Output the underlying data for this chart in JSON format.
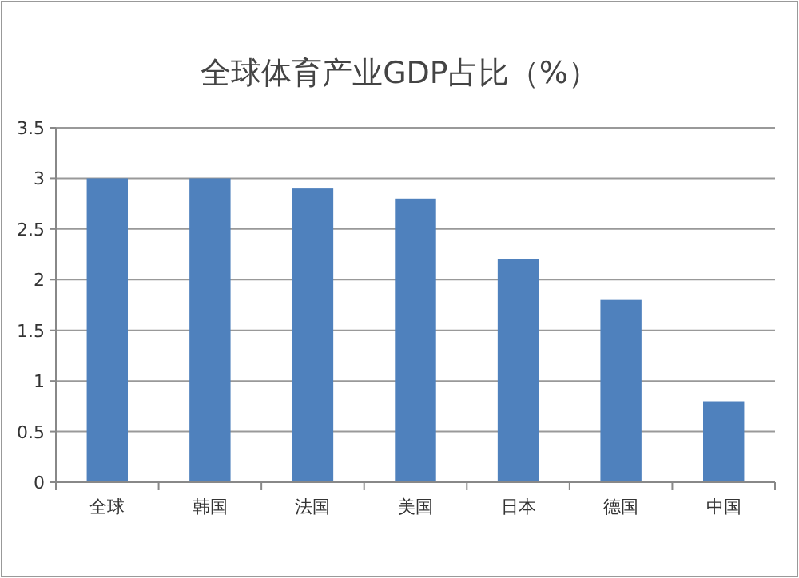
{
  "chart_data": {
    "type": "bar",
    "title": "全球体育产业GDP占比（%）",
    "categories": [
      "全球",
      "韩国",
      "法国",
      "美国",
      "日本",
      "德国",
      "中国"
    ],
    "values": [
      3,
      3,
      2.9,
      2.8,
      2.2,
      1.8,
      0.8
    ],
    "color": "#4f81bd",
    "ylim": [
      0,
      3.5
    ],
    "yticks": [
      0,
      0.5,
      1,
      1.5,
      2,
      2.5,
      3,
      3.5
    ],
    "grid": "y"
  }
}
